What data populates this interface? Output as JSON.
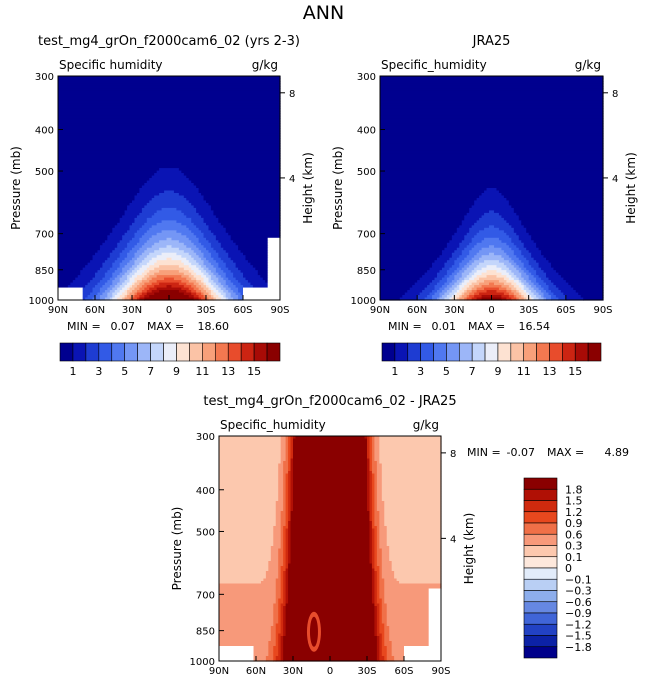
{
  "page_title": "ANN",
  "chart_data": [
    {
      "type": "contour",
      "title": "test_mg4_grOn_f2000cam6_02 (yrs 2-3)",
      "left_label": "Specific humidity",
      "right_label": "g/kg",
      "xlabel": "",
      "ylabel": "Pressure (mb)",
      "y2label": "Height (km)",
      "x_ticks": [
        "90N",
        "60N",
        "30N",
        "0",
        "30S",
        "60S",
        "90S"
      ],
      "x_range": [
        90,
        -90
      ],
      "y_ticks": [
        300,
        400,
        500,
        700,
        850,
        1000
      ],
      "y2_ticks": [
        8,
        4
      ],
      "min_label": "MIN =",
      "min": "0.07",
      "max_label": "MAX =",
      "max": "18.60",
      "peak_value": 18.6,
      "colorbar_labels": [
        "1",
        "3",
        "5",
        "7",
        "9",
        "11",
        "13",
        "15"
      ],
      "levels": [
        1,
        2,
        3,
        4,
        5,
        6,
        7,
        8,
        9,
        10,
        11,
        12,
        13,
        14,
        15
      ]
    },
    {
      "type": "contour",
      "title": "JRA25",
      "left_label": "Specific_humidity",
      "right_label": "g/kg",
      "xlabel": "",
      "ylabel": "Pressure (mb)",
      "y2label": "Height (km)",
      "x_ticks": [
        "90N",
        "60N",
        "30N",
        "0",
        "30S",
        "60S",
        "90S"
      ],
      "x_range": [
        90,
        -90
      ],
      "y_ticks": [
        300,
        400,
        500,
        700,
        850,
        1000
      ],
      "y2_ticks": [
        8,
        4
      ],
      "min_label": "MIN =",
      "min": "0.01",
      "max_label": "MAX =",
      "max": "16.54",
      "peak_value": 16.54,
      "colorbar_labels": [
        "1",
        "3",
        "5",
        "7",
        "9",
        "11",
        "13",
        "15"
      ],
      "levels": [
        1,
        2,
        3,
        4,
        5,
        6,
        7,
        8,
        9,
        10,
        11,
        12,
        13,
        14,
        15
      ]
    },
    {
      "type": "contour",
      "title": "test_mg4_grOn_f2000cam6_02 - JRA25",
      "left_label": "Specific_humidity",
      "right_label": "g/kg",
      "xlabel": "",
      "ylabel": "Pressure (mb)",
      "y2label": "Height (km)",
      "x_ticks": [
        "90N",
        "60N",
        "30N",
        "0",
        "30S",
        "60S",
        "90S"
      ],
      "x_range": [
        90,
        -90
      ],
      "y_ticks": [
        300,
        400,
        500,
        700,
        850,
        1000
      ],
      "y2_ticks": [
        8,
        4
      ],
      "min_label": "MIN =",
      "min": "-0.07",
      "max_label": "MAX =",
      "max": "4.89",
      "colorbar_labels": [
        "1.8",
        "1.5",
        "1.2",
        "0.9",
        "0.6",
        "0.3",
        "0.1",
        "0",
        "−0.1",
        "−0.3",
        "−0.6",
        "−0.9",
        "−1.2",
        "−1.5",
        "−1.8"
      ]
    }
  ],
  "colors": {
    "abs_scale": [
      "#00008f",
      "#0a14b4",
      "#1e3cd2",
      "#325ae6",
      "#5078f0",
      "#7496f5",
      "#9cb6f8",
      "#c4d6fb",
      "#ebeef9",
      "#fde2d2",
      "#fbc3a6",
      "#f8a07a",
      "#f37850",
      "#e84c2c",
      "#cc2412",
      "#a80b06",
      "#8a0000"
    ],
    "diff_scale": [
      "#8a0000",
      "#b01005",
      "#d02a0e",
      "#e8481e",
      "#f07048",
      "#f7997a",
      "#fcc8ae",
      "#fde8dc",
      "#e2ecfa",
      "#b9cff4",
      "#8daeec",
      "#6688e2",
      "#4065d8",
      "#2242c4",
      "#0c22a6",
      "#00008a"
    ]
  }
}
